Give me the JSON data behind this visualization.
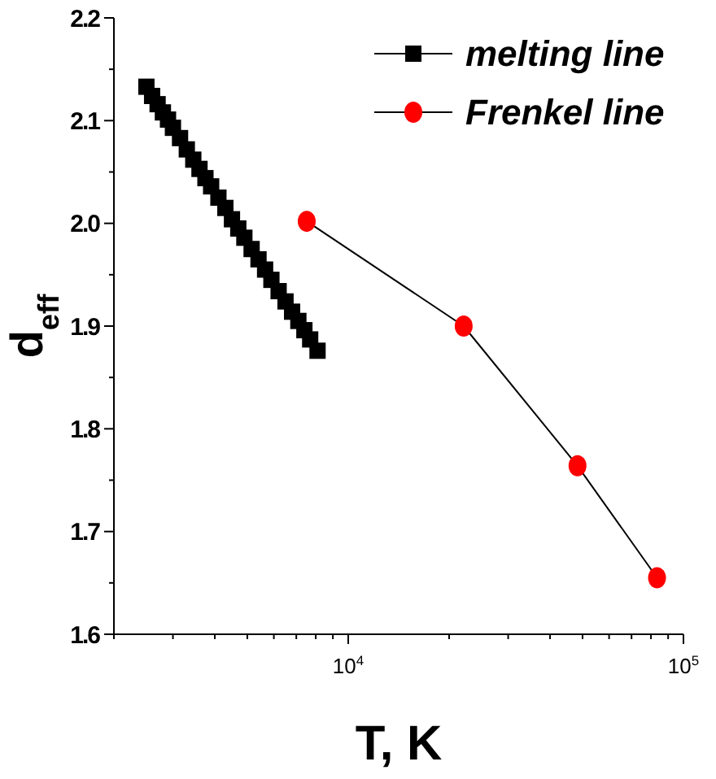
{
  "chart_data": {
    "type": "line",
    "xlabel": "T, K",
    "ylabel": "d$_{eff}$",
    "log": "x",
    "xlim": [
      2000,
      100000
    ],
    "ylim": [
      1.6,
      2.2
    ],
    "xticks": [
      {
        "value": 2000,
        "label": null
      },
      {
        "value": 3000,
        "label": null
      },
      {
        "value": 4000,
        "label": null
      },
      {
        "value": 5000,
        "label": null
      },
      {
        "value": 6000,
        "label": null
      },
      {
        "value": 7000,
        "label": null
      },
      {
        "value": 8000,
        "label": null
      },
      {
        "value": 9000,
        "label": null
      },
      {
        "value": 10000,
        "label": "10$^{4}$"
      },
      {
        "value": 20000,
        "label": null
      },
      {
        "value": 30000,
        "label": null
      },
      {
        "value": 40000,
        "label": null
      },
      {
        "value": 50000,
        "label": null
      },
      {
        "value": 60000,
        "label": null
      },
      {
        "value": 70000,
        "label": null
      },
      {
        "value": 80000,
        "label": null
      },
      {
        "value": 90000,
        "label": null
      },
      {
        "value": 100000,
        "label": "10$^{5}$"
      }
    ],
    "yticks": [
      {
        "value": 1.6,
        "label": "1.6"
      },
      {
        "value": 1.65,
        "label": null
      },
      {
        "value": 1.7,
        "label": "1.7"
      },
      {
        "value": 1.75,
        "label": null
      },
      {
        "value": 1.8,
        "label": "1.8"
      },
      {
        "value": 1.85,
        "label": null
      },
      {
        "value": 1.9,
        "label": "1.9"
      },
      {
        "value": 1.95,
        "label": null
      },
      {
        "value": 2.0,
        "label": "2.0"
      },
      {
        "value": 2.05,
        "label": null
      },
      {
        "value": 2.1,
        "label": "2.1"
      },
      {
        "value": 2.15,
        "label": null
      },
      {
        "value": 2.2,
        "label": "2.2"
      }
    ],
    "grid": false,
    "legend": "top right",
    "series": [
      {
        "name": "melting line",
        "type": "scatter",
        "color": "#000000",
        "marker": "square",
        "x": [
          2500,
          2600,
          2700,
          2800,
          2900,
          3000,
          3150,
          3300,
          3450,
          3600,
          3750,
          3900,
          4100,
          4300,
          4500,
          4700,
          4900,
          5150,
          5400,
          5650,
          5900,
          6200,
          6500,
          6800,
          7100,
          7400,
          7700,
          8100
        ],
        "values": [
          2.133,
          2.124,
          2.116,
          2.108,
          2.101,
          2.093,
          2.083,
          2.072,
          2.062,
          2.053,
          2.044,
          2.036,
          2.025,
          2.015,
          2.004,
          1.995,
          1.986,
          1.975,
          1.965,
          1.955,
          1.945,
          1.934,
          1.924,
          1.914,
          1.905,
          1.896,
          1.887,
          1.876
        ]
      },
      {
        "name": "Frenkel line",
        "color": "#ff0000",
        "marker": "circle",
        "x": [
          7520,
          22100,
          48300,
          83400
        ],
        "values": [
          2.002,
          1.9,
          1.764,
          1.655
        ]
      }
    ]
  }
}
